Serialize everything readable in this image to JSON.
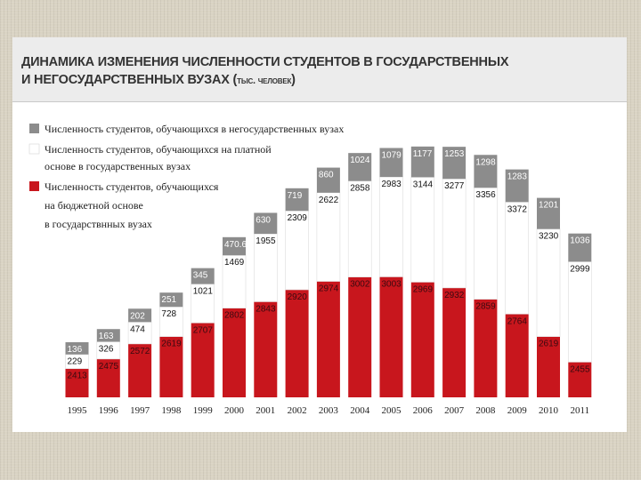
{
  "header": {
    "title_line1": "ДИНАМИКА ИЗМЕНЕНИЯ ЧИСЛЕННОСТИ СТУДЕНТОВ В ГОСУДАРСТВЕННЫХ",
    "title_line2": "И НЕГОСУДАРСТВЕННЫХ ВУЗАХ (",
    "title_unit": "тыс. человек",
    "title_close": ")"
  },
  "colors": {
    "nonstate": "#8c8c8c",
    "paid": "#ffffff",
    "budget": "#c8161d"
  },
  "legend": {
    "nonstate_line1": "Численность студентов, обучающихся в негосударственных вузах",
    "paid_line1": "Численность студентов, обучающихся на платной",
    "paid_line2": "основе в государственных вузах",
    "budget_line1": "Численность студентов, обучающихся",
    "budget_line2": "на бюджетной основе",
    "budget_line3": "в государствнных вузах"
  },
  "chart_data": {
    "type": "bar",
    "stacked": true,
    "title": "ДИНАМИКА ИЗМЕНЕНИЯ ЧИСЛЕННОСТИ СТУДЕНТОВ В ГОСУДАРСТВЕННЫХ И НЕГОСУДАРСТВЕННЫХ ВУЗАХ (тыс. человек)",
    "categories": [
      "1995",
      "1996",
      "1997",
      "1998",
      "1999",
      "2000",
      "2001",
      "2002",
      "2003",
      "2004",
      "2005",
      "2006",
      "2007",
      "2008",
      "2009",
      "2010",
      "2011"
    ],
    "series": [
      {
        "name": "Численность студентов, обучающихся на бюджетной основе в государствнных вузах",
        "values": [
          2413,
          2475,
          2572,
          2619,
          2707,
          2802,
          2843,
          2920,
          2974,
          3002,
          3003,
          2969,
          2932,
          2859,
          2764,
          2619,
          2455
        ]
      },
      {
        "name": "Численность студентов, обучающихся на платной основе в государственных вузах",
        "values": [
          229,
          326,
          474,
          728,
          1021,
          1469,
          1955,
          2309,
          2622,
          2858,
          2983,
          3144,
          3277,
          3356,
          3372,
          3230,
          2999
        ]
      },
      {
        "name": "Численность студентов, обучающихся в негосударственных вузах",
        "values": [
          136,
          163,
          202,
          251,
          345,
          470.6,
          630,
          719,
          860,
          1024,
          1079,
          1177,
          1253,
          1298,
          1283,
          1201,
          1036
        ]
      }
    ],
    "value_labels": {
      "budget": [
        "2413",
        "2475",
        "2572",
        "2619",
        "2707",
        "2802",
        "2843",
        "2920",
        "2974",
        "3002",
        "3003",
        "2969",
        "2932",
        "2859",
        "2764",
        "2619",
        "2455"
      ],
      "paid": [
        "229",
        "326",
        "474",
        "728",
        "1021",
        "1469",
        "1955",
        "2309",
        "2622",
        "2858",
        "2983",
        "3144",
        "3277",
        "3356",
        "3372",
        "3230",
        "2999"
      ],
      "nonstate": [
        "136",
        "163",
        "202",
        "251",
        "345",
        "470.6",
        "630",
        "719",
        "860",
        "1024",
        "1079",
        "1177",
        "1253",
        "1298",
        "1283",
        "1201",
        "1036"
      ]
    },
    "legend_position": "top-left",
    "grid": false
  }
}
